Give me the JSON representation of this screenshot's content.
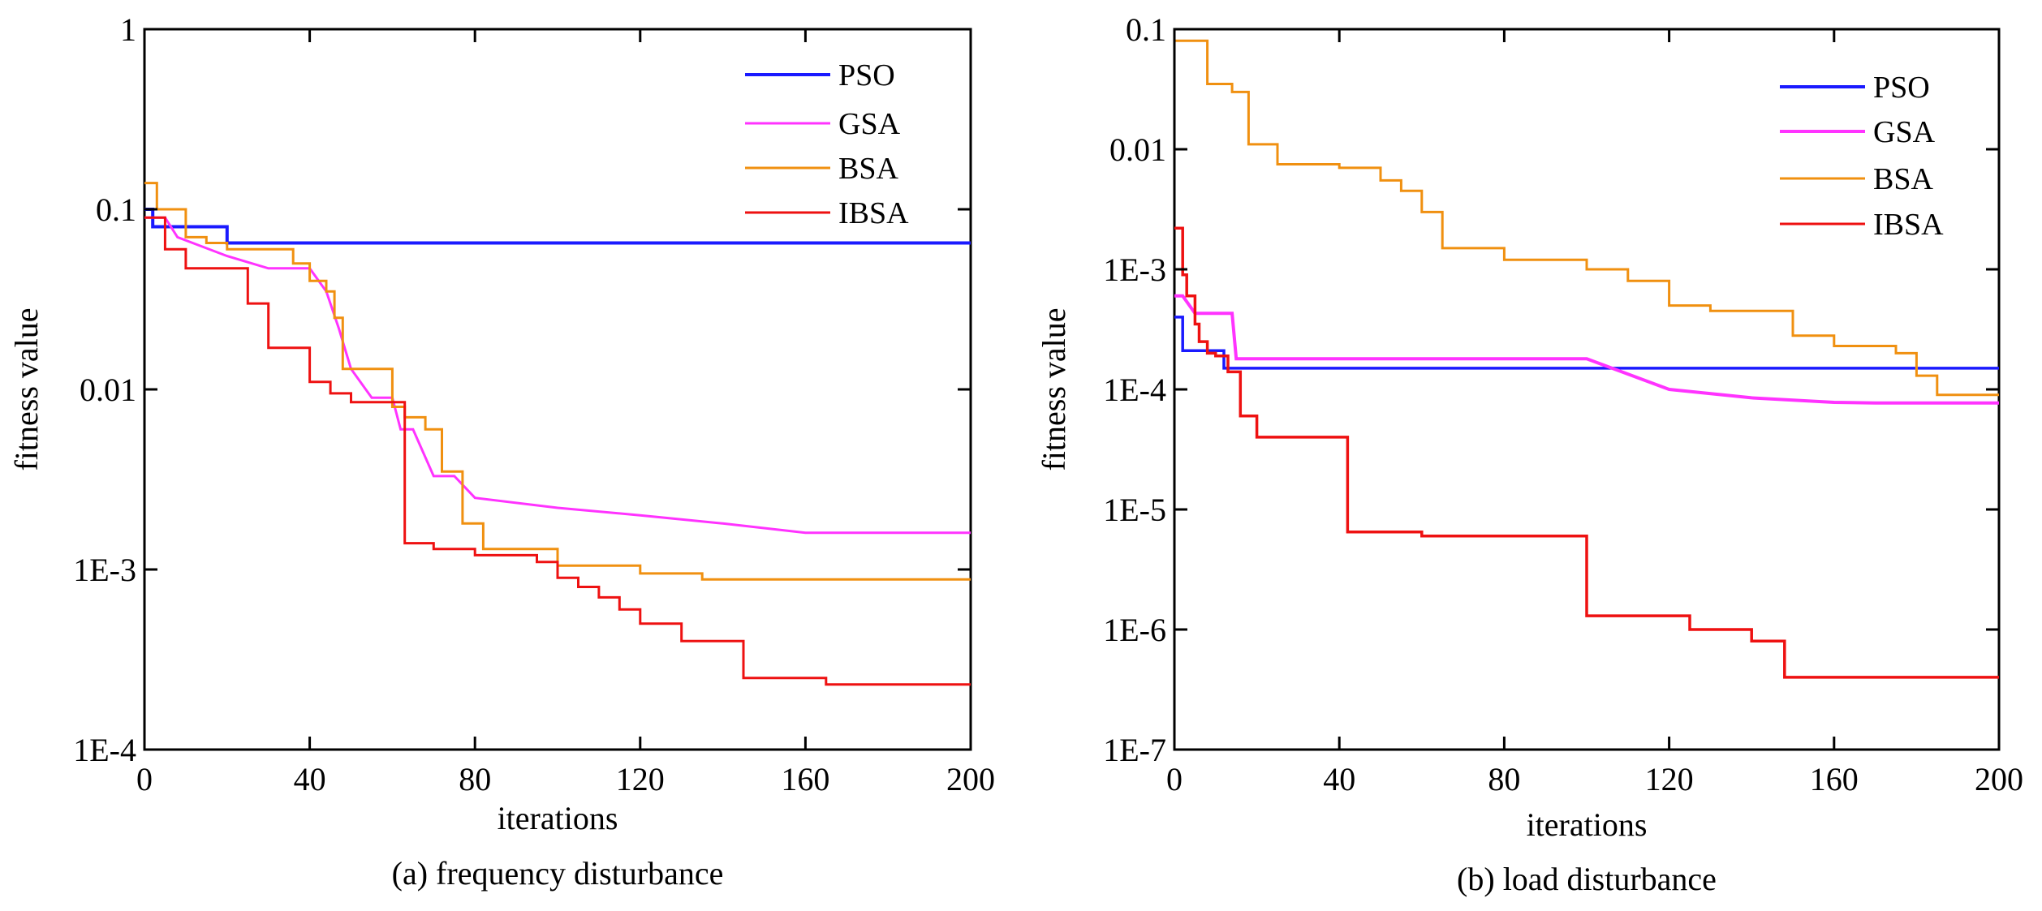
{
  "colors": {
    "PSO": "#1a1aff",
    "GSA": "#ff33ff",
    "BSA": "#f09010",
    "IBSA": "#ee1111"
  },
  "chart_data": [
    {
      "type": "line",
      "caption": "(a) frequency disturbance",
      "xlabel": "iterations",
      "ylabel": "fitness value",
      "yscale": "log",
      "xlim": [
        0,
        200
      ],
      "ylim": [
        0.0001,
        1
      ],
      "xticks": [
        0,
        40,
        80,
        120,
        160,
        200
      ],
      "xtick_labels": [
        "0",
        "40",
        "80",
        "120",
        "160",
        "200"
      ],
      "yticks": [
        0.0001,
        0.001,
        0.01,
        0.1,
        1
      ],
      "ytick_labels": [
        "1E-4",
        "1E-3",
        "0.01",
        "0.1",
        "1"
      ],
      "legend_position": "top-right",
      "series": [
        {
          "name": "PSO",
          "step": true,
          "x": [
            0,
            2,
            15,
            20,
            200
          ],
          "y": [
            0.1,
            0.08,
            0.08,
            0.065,
            0.065
          ]
        },
        {
          "name": "GSA",
          "step": false,
          "x": [
            0,
            5,
            8,
            20,
            30,
            40,
            44,
            47,
            50,
            55,
            60,
            62,
            65,
            70,
            75,
            80,
            100,
            120,
            140,
            160,
            200
          ],
          "y": [
            0.09,
            0.09,
            0.07,
            0.055,
            0.047,
            0.047,
            0.035,
            0.022,
            0.013,
            0.009,
            0.009,
            0.006,
            0.006,
            0.0033,
            0.0033,
            0.0025,
            0.0022,
            0.002,
            0.0018,
            0.0016,
            0.0016
          ]
        },
        {
          "name": "BSA",
          "step": true,
          "x": [
            0,
            3,
            10,
            15,
            20,
            30,
            36,
            40,
            44,
            46,
            48,
            55,
            60,
            63,
            68,
            72,
            77,
            82,
            90,
            100,
            120,
            135,
            160,
            200
          ],
          "y": [
            0.14,
            0.1,
            0.07,
            0.065,
            0.06,
            0.06,
            0.05,
            0.04,
            0.035,
            0.025,
            0.013,
            0.013,
            0.008,
            0.007,
            0.006,
            0.0035,
            0.0018,
            0.0013,
            0.0013,
            0.00105,
            0.00095,
            0.00088,
            0.00088,
            0.00088
          ]
        },
        {
          "name": "IBSA",
          "step": true,
          "x": [
            0,
            5,
            10,
            20,
            25,
            30,
            40,
            45,
            50,
            60,
            63,
            70,
            80,
            90,
            95,
            100,
            105,
            110,
            115,
            120,
            130,
            145,
            150,
            165,
            200
          ],
          "y": [
            0.09,
            0.06,
            0.047,
            0.047,
            0.03,
            0.017,
            0.011,
            0.0095,
            0.0085,
            0.0085,
            0.0014,
            0.0013,
            0.0012,
            0.0012,
            0.0011,
            0.0009,
            0.0008,
            0.0007,
            0.0006,
            0.0005,
            0.0004,
            0.00025,
            0.00025,
            0.00023,
            0.00023
          ]
        }
      ]
    },
    {
      "type": "line",
      "caption": "(b) load disturbance",
      "xlabel": "iterations",
      "ylabel": "fitness value",
      "yscale": "log",
      "xlim": [
        0,
        200
      ],
      "ylim": [
        1e-07,
        0.1
      ],
      "xticks": [
        0,
        40,
        80,
        120,
        160,
        200
      ],
      "xtick_labels": [
        "0",
        "40",
        "80",
        "120",
        "160",
        "200"
      ],
      "yticks": [
        1e-07,
        1e-06,
        1e-05,
        0.0001,
        0.001,
        0.01,
        0.1
      ],
      "ytick_labels": [
        "1E-7",
        "1E-6",
        "1E-5",
        "1E-4",
        "1E-3",
        "0.01",
        "0.1"
      ],
      "legend_position": "top-right",
      "series": [
        {
          "name": "PSO",
          "step": true,
          "x": [
            0,
            1,
            2,
            10,
            12,
            200
          ],
          "y": [
            0.0004,
            0.0004,
            0.00021,
            0.00021,
            0.00015,
            0.00015
          ]
        },
        {
          "name": "GSA",
          "step": false,
          "x": [
            0,
            2,
            5,
            14,
            15,
            100,
            120,
            140,
            160,
            170,
            200
          ],
          "y": [
            0.0006,
            0.0006,
            0.00043,
            0.00043,
            0.00018,
            0.00018,
            0.0001,
            8.5e-05,
            7.8e-05,
            7.7e-05,
            7.7e-05
          ]
        },
        {
          "name": "BSA",
          "step": true,
          "x": [
            0,
            6,
            8,
            14,
            18,
            25,
            40,
            50,
            55,
            60,
            65,
            70,
            80,
            90,
            100,
            110,
            120,
            130,
            140,
            150,
            160,
            175,
            180,
            185,
            200
          ],
          "y": [
            0.08,
            0.08,
            0.035,
            0.03,
            0.011,
            0.0075,
            0.007,
            0.0055,
            0.0045,
            0.003,
            0.0015,
            0.0015,
            0.0012,
            0.0012,
            0.001,
            0.0008,
            0.0005,
            0.00045,
            0.00045,
            0.00028,
            0.00023,
            0.0002,
            0.00013,
            9e-05,
            9e-05
          ]
        },
        {
          "name": "IBSA",
          "step": true,
          "x": [
            0,
            1,
            2,
            3,
            5,
            6,
            8,
            10,
            13,
            16,
            20,
            30,
            42,
            45,
            60,
            80,
            100,
            102,
            120,
            125,
            140,
            148,
            152,
            165,
            200
          ],
          "y": [
            0.0022,
            0.0022,
            0.0009,
            0.0006,
            0.00035,
            0.00025,
            0.0002,
            0.00019,
            0.00014,
            6e-05,
            4e-05,
            4e-05,
            6.5e-06,
            6.5e-06,
            6e-06,
            6e-06,
            1.3e-06,
            1.3e-06,
            1.3e-06,
            1e-06,
            8e-07,
            4e-07,
            4e-07,
            4e-07,
            4e-07
          ]
        }
      ]
    }
  ]
}
